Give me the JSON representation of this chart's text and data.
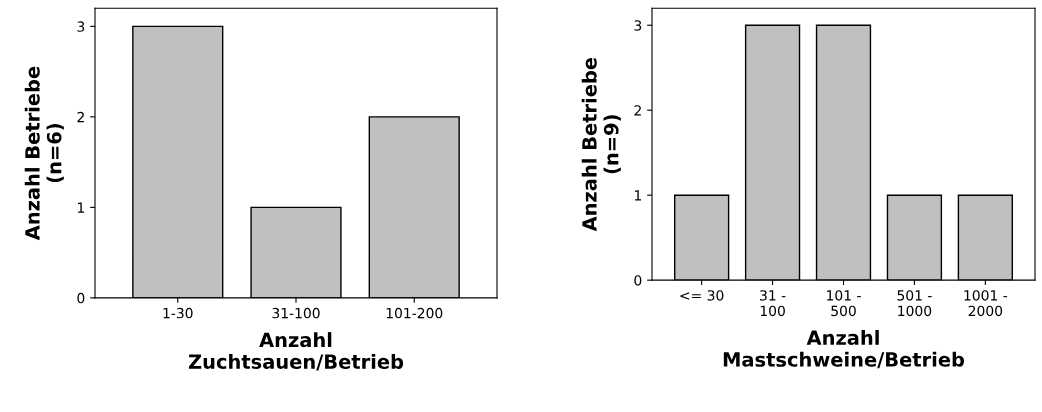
{
  "chart_data": [
    {
      "type": "bar",
      "xlabel": "Anzahl\nZuchtsauen/Betrieb",
      "ylabel": "Anzahl Betriebe\n(n=6)",
      "categories": [
        "1-30",
        "31-100",
        "101-200"
      ],
      "values": [
        3,
        1,
        2
      ],
      "color": "#c0c0c0",
      "ylim": [
        0,
        3.2
      ],
      "yticks": [
        0,
        1,
        2,
        3
      ],
      "grid": false,
      "legend": false
    },
    {
      "type": "bar",
      "xlabel": "Anzahl\nMastschweine/Betrieb",
      "ylabel": "Anzahl Betriebe\n(n=9)",
      "categories": [
        "<= 30",
        "31 -\n100",
        "101 -\n500",
        "501 -\n1000",
        "1001 -\n2000"
      ],
      "values": [
        1,
        3,
        3,
        1,
        1
      ],
      "color": "#c0c0c0",
      "ylim": [
        0,
        3.2
      ],
      "yticks": [
        0,
        1,
        2,
        3
      ],
      "grid": false,
      "legend": false
    }
  ]
}
